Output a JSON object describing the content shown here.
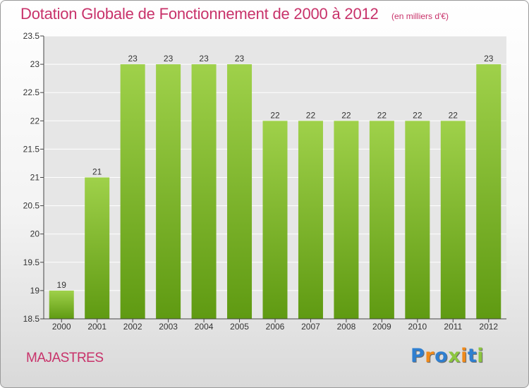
{
  "header": {
    "title": "Dotation Globale de Fonctionnement de 2000 à 2012",
    "unit": "(en milliers d'€)"
  },
  "footer": {
    "commune": "MAJASTRES",
    "logo_letters": [
      "P",
      "r",
      "o",
      "x",
      "i",
      "t",
      "i"
    ],
    "logo_colors": [
      "#2f7fd0",
      "#f08a1a",
      "#2f7fd0",
      "#8cc63f",
      "#f08a1a",
      "#2f7fd0",
      "#8cc63f"
    ]
  },
  "colors": {
    "bar_light": "#9fd14a",
    "bar_dark": "#5f9a12",
    "accent": "#c8326a",
    "grid": "#ffffff",
    "axis": "#444444"
  },
  "chart_data": {
    "type": "bar",
    "categories": [
      "2000",
      "2001",
      "2002",
      "2003",
      "2004",
      "2005",
      "2006",
      "2007",
      "2008",
      "2009",
      "2010",
      "2011",
      "2012"
    ],
    "values": [
      19,
      21,
      23,
      23,
      23,
      23,
      22,
      22,
      22,
      22,
      22,
      22,
      23
    ],
    "data_labels": [
      "19",
      "21",
      "23",
      "23",
      "23",
      "23",
      "22",
      "22",
      "22",
      "22",
      "22",
      "22",
      "23"
    ],
    "ylim": [
      18.5,
      23.5
    ],
    "yticks": [
      "18.5",
      "19",
      "19.5",
      "20",
      "20.5",
      "21",
      "21.5",
      "22",
      "22.5",
      "23",
      "23.5"
    ],
    "grid": true
  }
}
